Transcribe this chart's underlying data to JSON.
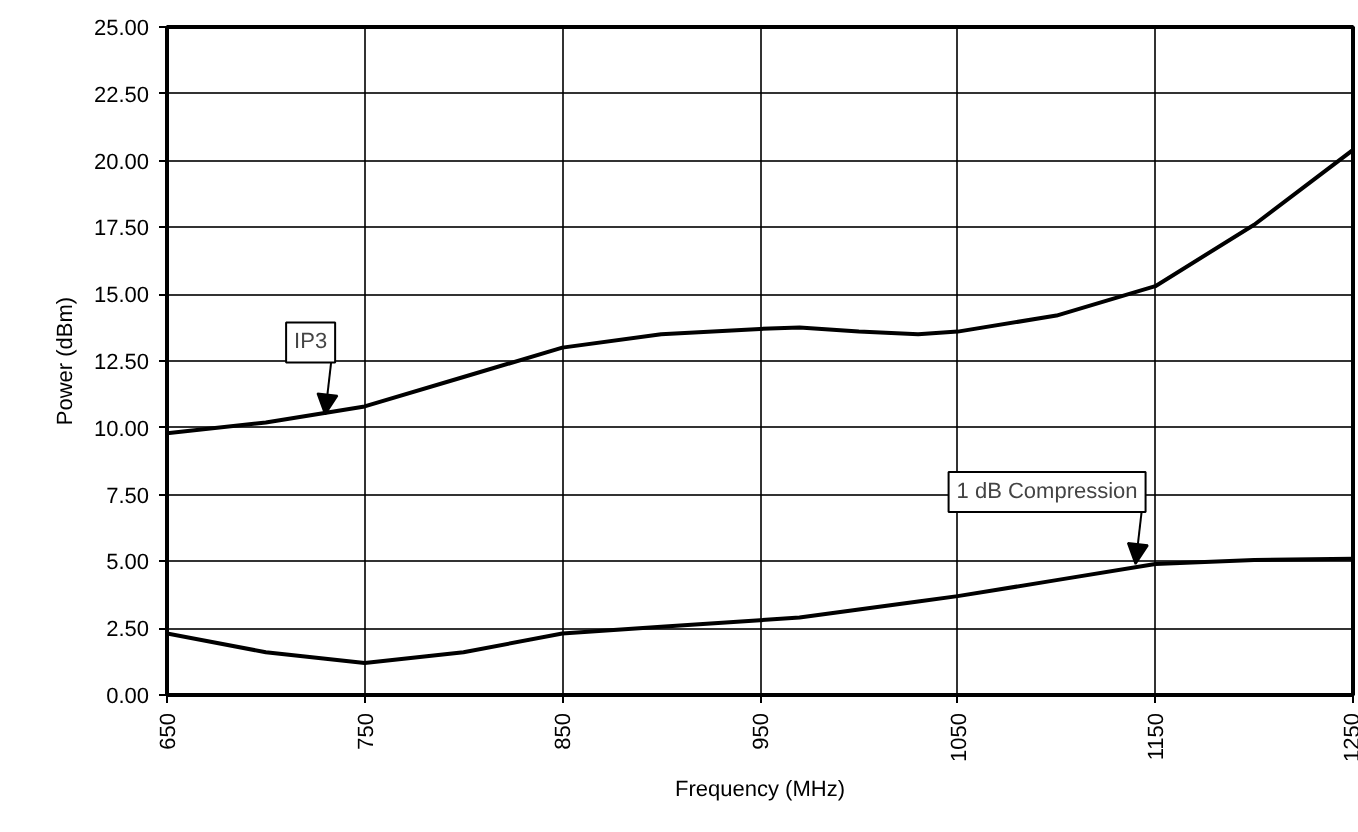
{
  "chart_data": {
    "type": "line",
    "xlabel": "Frequency (MHz)",
    "ylabel": "Power (dBm)",
    "x": [
      650,
      700,
      750,
      800,
      850,
      900,
      950,
      970,
      1000,
      1030,
      1050,
      1100,
      1150,
      1200,
      1250
    ],
    "series": [
      {
        "color": "#000000",
        "values": [
          9.8,
          10.2,
          10.8,
          11.9,
          13.0,
          13.5,
          13.7,
          13.75,
          13.6,
          13.5,
          13.6,
          14.2,
          15.3,
          17.6,
          20.4
        ]
      },
      {
        "color": "#000000",
        "values": [
          2.3,
          1.6,
          1.2,
          1.6,
          2.3,
          2.55,
          2.8,
          2.9,
          3.2,
          3.5,
          3.7,
          4.3,
          4.9,
          5.05,
          5.1
        ]
      }
    ],
    "xlim": [
      650,
      1250
    ],
    "xticks": [
      650,
      750,
      850,
      950,
      1050,
      1150,
      1250
    ],
    "ylim": [
      0,
      25
    ],
    "yticks": [
      {
        "value": 0,
        "label": "0.00"
      },
      {
        "value": 2.5,
        "label": "2.50"
      },
      {
        "value": 5,
        "label": "5.00"
      },
      {
        "value": 7.5,
        "label": "7.50"
      },
      {
        "value": 10,
        "label": "10.00"
      },
      {
        "value": 12.5,
        "label": "12.50"
      },
      {
        "value": 15,
        "label": "15.00"
      },
      {
        "value": 17.5,
        "label": "17.50"
      },
      {
        "value": 20,
        "label": "20.00"
      },
      {
        "value": 22.5,
        "label": "22.50"
      },
      {
        "value": 25,
        "label": "25.00"
      }
    ],
    "grid": true,
    "marker": "none",
    "line_style": "solid",
    "annotations": [
      {
        "text": "IP3",
        "x": 730,
        "y": 10.5
      },
      {
        "text": "1 dB Compression",
        "x": 1140,
        "y": 4.9
      }
    ]
  }
}
